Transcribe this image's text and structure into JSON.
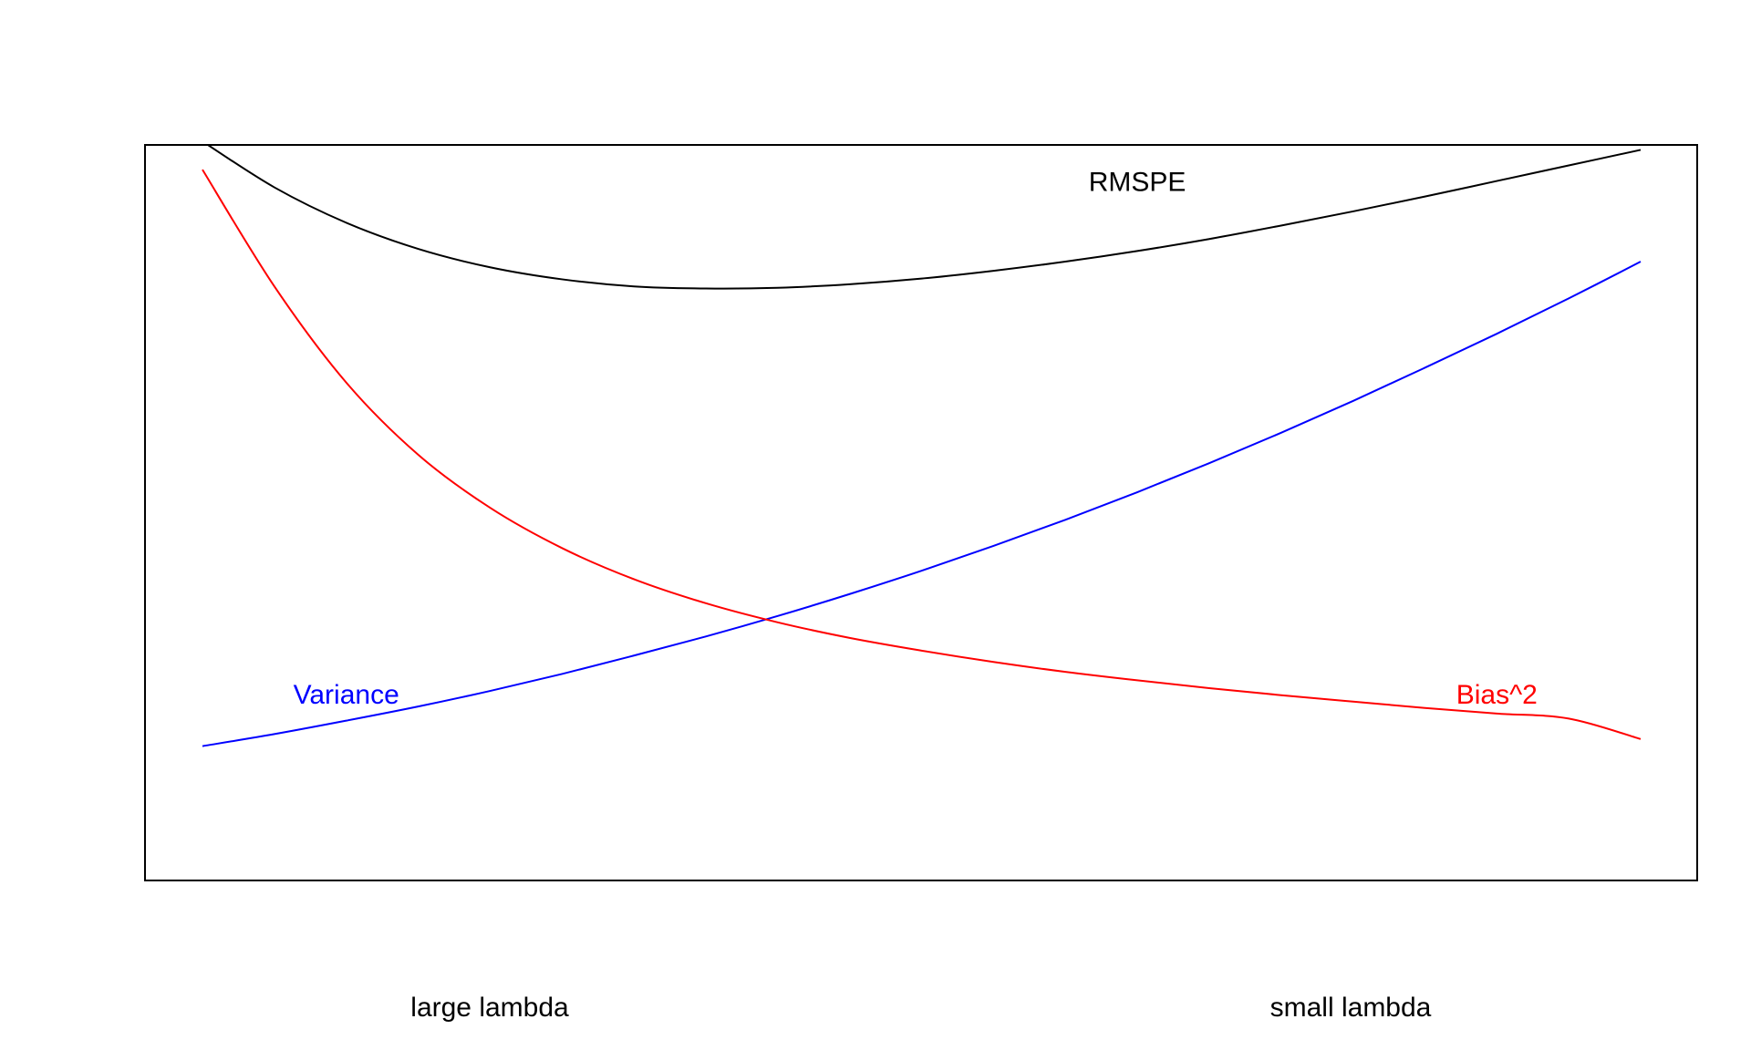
{
  "chart_data": {
    "type": "line",
    "title": "",
    "xlabel": "",
    "ylabel": "",
    "x_range": [
      0,
      1
    ],
    "y_range": [
      0,
      1
    ],
    "grid": false,
    "axes_ticks": false,
    "legend": "none",
    "series": [
      {
        "name": "RMSPE",
        "color": "#000000",
        "x": [
          0.0,
          0.05,
          0.1,
          0.15,
          0.2,
          0.25,
          0.3,
          0.35,
          0.4,
          0.45,
          0.5,
          0.55,
          0.6,
          0.65,
          0.7,
          0.75,
          0.8,
          0.85,
          0.9,
          0.95,
          1.0
        ],
        "y": [
          1.005,
          0.94,
          0.89,
          0.853,
          0.827,
          0.81,
          0.8,
          0.797,
          0.798,
          0.803,
          0.811,
          0.822,
          0.835,
          0.85,
          0.867,
          0.886,
          0.906,
          0.927,
          0.949,
          0.971,
          0.993
        ]
      },
      {
        "name": "Variance",
        "color": "#0000ff",
        "x": [
          0.0,
          0.05,
          0.1,
          0.15,
          0.2,
          0.25,
          0.3,
          0.35,
          0.4,
          0.45,
          0.5,
          0.55,
          0.6,
          0.65,
          0.7,
          0.75,
          0.8,
          0.85,
          0.9,
          0.95,
          1.0
        ],
        "y": [
          0.15,
          0.167,
          0.186,
          0.206,
          0.228,
          0.252,
          0.278,
          0.305,
          0.334,
          0.365,
          0.398,
          0.433,
          0.47,
          0.509,
          0.55,
          0.593,
          0.638,
          0.685,
          0.733,
          0.783,
          0.835
        ]
      },
      {
        "name": "Bias^2",
        "color": "#ff0000",
        "x": [
          0.0,
          0.05,
          0.1,
          0.15,
          0.2,
          0.25,
          0.3,
          0.35,
          0.4,
          0.45,
          0.5,
          0.55,
          0.6,
          0.65,
          0.7,
          0.75,
          0.8,
          0.85,
          0.9,
          0.95,
          1.0
        ],
        "y": [
          0.965,
          0.8,
          0.664,
          0.562,
          0.487,
          0.43,
          0.386,
          0.352,
          0.325,
          0.303,
          0.285,
          0.269,
          0.255,
          0.243,
          0.232,
          0.222,
          0.213,
          0.204,
          0.196,
          0.189,
          0.16
        ]
      }
    ],
    "annotations": [
      {
        "text": "RMSPE",
        "color": "#000000",
        "x": 0.65,
        "y": 0.945
      },
      {
        "text": "Variance",
        "color": "#0000ff",
        "x": 0.1,
        "y": 0.22
      },
      {
        "text": "Bias^2",
        "color": "#ff0000",
        "x": 0.9,
        "y": 0.22
      }
    ],
    "bottom_labels": {
      "left": "large lambda",
      "right": "small lambda"
    }
  }
}
